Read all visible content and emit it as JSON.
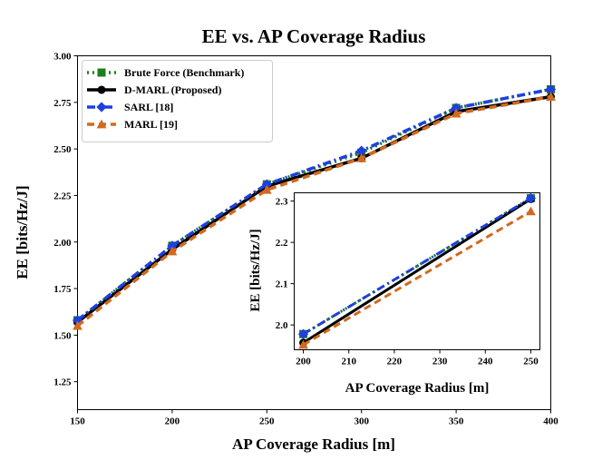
{
  "chart_data": [
    {
      "type": "line",
      "title": "EE vs. AP Coverage Radius",
      "xlabel": "AP Coverage Radius [m]",
      "ylabel": "EE [bits/Hz/J]",
      "x": [
        150,
        200,
        250,
        300,
        350,
        400
      ],
      "xlim": [
        150,
        400
      ],
      "ylim": [
        1.1,
        3.0
      ],
      "xticks": [
        "150",
        "200",
        "250",
        "300",
        "350",
        "400"
      ],
      "yticks": [
        "1.25",
        "1.50",
        "1.75",
        "2.00",
        "2.25",
        "2.50",
        "2.75",
        "3.00"
      ],
      "legend_position": "top-left",
      "grid": false,
      "series": [
        {
          "name": "Brute Force (Benchmark)",
          "color": "#1a7f1a",
          "marker": "square",
          "dash": "dotted",
          "values": [
            1.58,
            1.98,
            2.31,
            2.48,
            2.72,
            2.82
          ]
        },
        {
          "name": "D-MARL (Proposed)",
          "color": "#000000",
          "marker": "circle",
          "dash": "solid",
          "values": [
            1.57,
            1.96,
            2.3,
            2.45,
            2.7,
            2.78
          ]
        },
        {
          "name": "SARL [18]",
          "color": "#1f3fe0",
          "marker": "diamond",
          "dash": "dashdot",
          "values": [
            1.58,
            1.98,
            2.31,
            2.49,
            2.72,
            2.82
          ]
        },
        {
          "name": "MARL [19]",
          "color": "#d2691e",
          "marker": "triangle",
          "dash": "dashed",
          "values": [
            1.55,
            1.95,
            2.28,
            2.45,
            2.69,
            2.78
          ]
        }
      ]
    },
    {
      "type": "line",
      "title": "",
      "xlabel": "AP Coverage Radius [m]",
      "ylabel": "EE [bits/Hz/J]",
      "x": [
        200,
        250
      ],
      "xlim": [
        198,
        252
      ],
      "ylim": [
        1.94,
        2.32
      ],
      "xticks": [
        "200",
        "210",
        "220",
        "230",
        "240",
        "250"
      ],
      "yticks": [
        "2.0",
        "2.1",
        "2.2",
        "2.3"
      ],
      "grid": false,
      "series": [
        {
          "name": "Brute Force (Benchmark)",
          "color": "#1a7f1a",
          "marker": "square",
          "dash": "dotted",
          "values": [
            1.978,
            2.307
          ]
        },
        {
          "name": "D-MARL (Proposed)",
          "color": "#000000",
          "marker": "circle",
          "dash": "solid",
          "values": [
            1.957,
            2.305
          ]
        },
        {
          "name": "SARL [18]",
          "color": "#1f3fe0",
          "marker": "diamond",
          "dash": "dashdot",
          "values": [
            1.978,
            2.307
          ]
        },
        {
          "name": "MARL [19]",
          "color": "#d2691e",
          "marker": "triangle",
          "dash": "dashed",
          "values": [
            1.952,
            2.275
          ]
        }
      ]
    }
  ]
}
